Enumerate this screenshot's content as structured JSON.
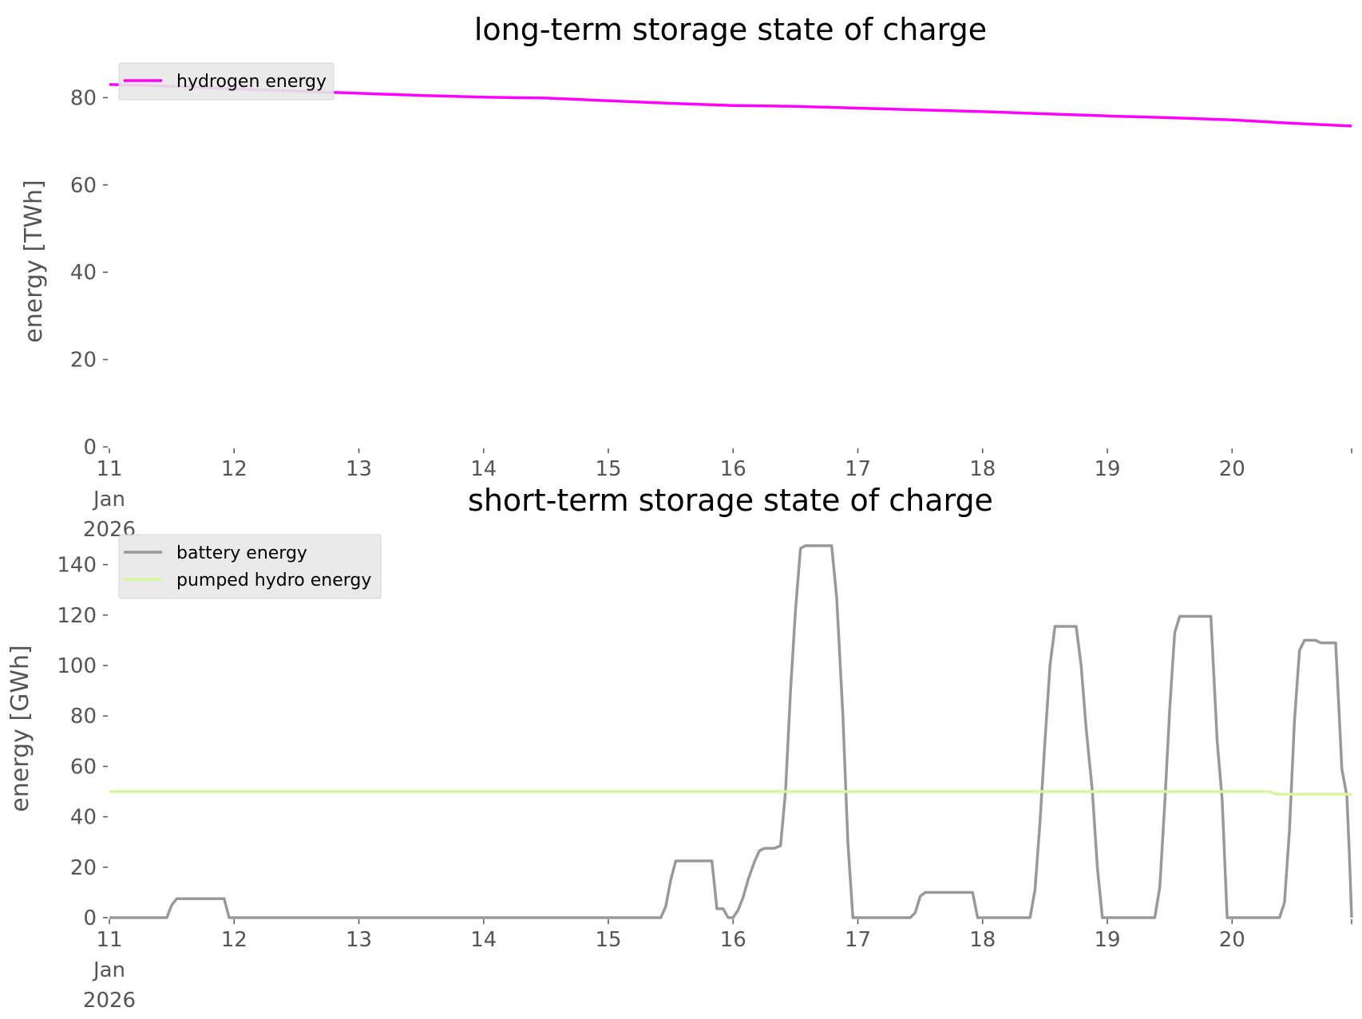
{
  "chart_data": [
    {
      "type": "line",
      "title": "long-term storage state of charge",
      "ylabel": "energy [TWh]",
      "xlabel": "",
      "x_unit": "days since 11 Jan 2026 00:00",
      "xlim": [
        0,
        9.958
      ],
      "ylim": [
        0,
        85
      ],
      "x_ticks": [
        {
          "x": 0,
          "lines": [
            "11",
            "Jan",
            "2026"
          ]
        },
        {
          "x": 1,
          "lines": [
            "12"
          ]
        },
        {
          "x": 2,
          "lines": [
            "13"
          ]
        },
        {
          "x": 3,
          "lines": [
            "14"
          ]
        },
        {
          "x": 4,
          "lines": [
            "15"
          ]
        },
        {
          "x": 5,
          "lines": [
            "16"
          ]
        },
        {
          "x": 6,
          "lines": [
            "17"
          ]
        },
        {
          "x": 7,
          "lines": [
            "18"
          ]
        },
        {
          "x": 8,
          "lines": [
            "19"
          ]
        },
        {
          "x": 9,
          "lines": [
            "20"
          ]
        }
      ],
      "y_ticks": [
        0,
        20,
        40,
        60,
        80
      ],
      "legend": "top-left",
      "grid": false,
      "series": [
        {
          "name": "hydrogen energy",
          "color": "#ff00ff",
          "points": [
            [
              0,
              83.0
            ],
            [
              0.5,
              82.6
            ],
            [
              1,
              82.0
            ],
            [
              1.5,
              81.5
            ],
            [
              2,
              81.0
            ],
            [
              2.5,
              80.5
            ],
            [
              3,
              80.1
            ],
            [
              3.5,
              79.9
            ],
            [
              4,
              79.3
            ],
            [
              4.5,
              78.7
            ],
            [
              5,
              78.2
            ],
            [
              5.5,
              78.0
            ],
            [
              6,
              77.6
            ],
            [
              6.5,
              77.2
            ],
            [
              7,
              76.8
            ],
            [
              7.5,
              76.3
            ],
            [
              8,
              75.8
            ],
            [
              8.5,
              75.4
            ],
            [
              9,
              74.9
            ],
            [
              9.5,
              74.1
            ],
            [
              9.958,
              73.5
            ]
          ]
        }
      ]
    },
    {
      "type": "line",
      "title": "short-term storage state of charge",
      "ylabel": "energy [GWh]",
      "xlabel": "",
      "x_unit": "days since 11 Jan 2026 00:00",
      "xlim": [
        0,
        9.958
      ],
      "ylim": [
        0,
        150
      ],
      "x_ticks": [
        {
          "x": 0,
          "lines": [
            "11",
            "Jan",
            "2026"
          ]
        },
        {
          "x": 1,
          "lines": [
            "12"
          ]
        },
        {
          "x": 2,
          "lines": [
            "13"
          ]
        },
        {
          "x": 3,
          "lines": [
            "14"
          ]
        },
        {
          "x": 4,
          "lines": [
            "15"
          ]
        },
        {
          "x": 5,
          "lines": [
            "16"
          ]
        },
        {
          "x": 6,
          "lines": [
            "17"
          ]
        },
        {
          "x": 7,
          "lines": [
            "18"
          ]
        },
        {
          "x": 8,
          "lines": [
            "19"
          ]
        },
        {
          "x": 9,
          "lines": [
            "20"
          ]
        }
      ],
      "y_ticks": [
        0,
        20,
        40,
        60,
        80,
        100,
        120,
        140
      ],
      "legend": "top-left",
      "grid": false,
      "series": [
        {
          "name": "battery energy",
          "color": "#999999",
          "points": [
            [
              0,
              0
            ],
            [
              0.46,
              0
            ],
            [
              0.5,
              5
            ],
            [
              0.54,
              7.5
            ],
            [
              0.92,
              7.5
            ],
            [
              0.96,
              0
            ],
            [
              4.42,
              0
            ],
            [
              4.46,
              4.5
            ],
            [
              4.5,
              15
            ],
            [
              4.54,
              22.5
            ],
            [
              4.83,
              22.5
            ],
            [
              4.87,
              3.5
            ],
            [
              4.92,
              3.5
            ],
            [
              4.96,
              0
            ],
            [
              5.0,
              0
            ],
            [
              5.04,
              3
            ],
            [
              5.08,
              8
            ],
            [
              5.12,
              15
            ],
            [
              5.17,
              22
            ],
            [
              5.21,
              26.5
            ],
            [
              5.25,
              27.5
            ],
            [
              5.33,
              27.5
            ],
            [
              5.38,
              28.5
            ],
            [
              5.42,
              50
            ],
            [
              5.46,
              90
            ],
            [
              5.5,
              122
            ],
            [
              5.54,
              146.5
            ],
            [
              5.58,
              147.5
            ],
            [
              5.79,
              147.5
            ],
            [
              5.83,
              127
            ],
            [
              5.88,
              80
            ],
            [
              5.92,
              30
            ],
            [
              5.96,
              0
            ],
            [
              6.42,
              0
            ],
            [
              6.46,
              2
            ],
            [
              6.5,
              8.5
            ],
            [
              6.54,
              10
            ],
            [
              6.92,
              10
            ],
            [
              6.96,
              0
            ],
            [
              7.38,
              0
            ],
            [
              7.42,
              11
            ],
            [
              7.46,
              38
            ],
            [
              7.5,
              70
            ],
            [
              7.54,
              100
            ],
            [
              7.58,
              115.5
            ],
            [
              7.75,
              115.5
            ],
            [
              7.79,
              100
            ],
            [
              7.83,
              75
            ],
            [
              7.88,
              50
            ],
            [
              7.92,
              20
            ],
            [
              7.96,
              0
            ],
            [
              8.38,
              0
            ],
            [
              8.42,
              12
            ],
            [
              8.46,
              45
            ],
            [
              8.5,
              83
            ],
            [
              8.54,
              113
            ],
            [
              8.58,
              119.5
            ],
            [
              8.83,
              119.5
            ],
            [
              8.88,
              70
            ],
            [
              8.92,
              47
            ],
            [
              8.96,
              0
            ],
            [
              9.38,
              0
            ],
            [
              9.42,
              6
            ],
            [
              9.46,
              35
            ],
            [
              9.5,
              78
            ],
            [
              9.54,
              106
            ],
            [
              9.58,
              110
            ],
            [
              9.67,
              110
            ],
            [
              9.71,
              109
            ],
            [
              9.83,
              109
            ],
            [
              9.88,
              59
            ],
            [
              9.92,
              48
            ],
            [
              9.94,
              25
            ],
            [
              9.958,
              0
            ]
          ]
        },
        {
          "name": "pumped hydro energy",
          "color": "#d8f7a0",
          "points": [
            [
              0,
              50
            ],
            [
              9.25,
              50
            ],
            [
              9.3,
              50
            ],
            [
              9.35,
              49
            ],
            [
              9.958,
              49
            ]
          ]
        }
      ]
    }
  ]
}
